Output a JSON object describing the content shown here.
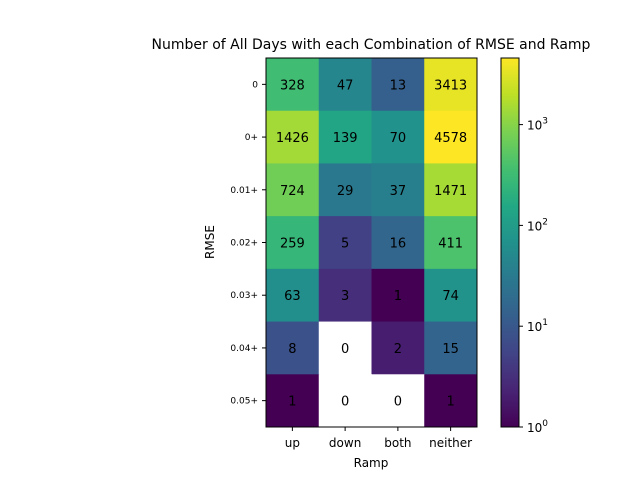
{
  "chart_data": {
    "type": "heatmap",
    "title": "Number of All Days with each Combination of RMSE and Ramp",
    "xlabel": "Ramp",
    "ylabel": "RMSE",
    "x_categories": [
      "up",
      "down",
      "both",
      "neither"
    ],
    "y_categories": [
      "0",
      "0+",
      "0.01+",
      "0.02+",
      "0.03+",
      "0.04+",
      "0.05+"
    ],
    "values": [
      [
        328,
        47,
        13,
        3413
      ],
      [
        1426,
        139,
        70,
        4578
      ],
      [
        724,
        29,
        37,
        1471
      ],
      [
        259,
        5,
        16,
        411
      ],
      [
        63,
        3,
        1,
        74
      ],
      [
        8,
        0,
        2,
        15
      ],
      [
        1,
        0,
        0,
        1
      ]
    ],
    "color_scale": "log",
    "colormap": "viridis",
    "zero_color": "#ffffff",
    "colorbar": {
      "range": [
        1,
        4578
      ],
      "ticks": [
        {
          "value": 1,
          "base": "10",
          "exp": "0"
        },
        {
          "value": 10,
          "base": "10",
          "exp": "1"
        },
        {
          "value": 100,
          "base": "10",
          "exp": "2"
        },
        {
          "value": 1000,
          "base": "10",
          "exp": "3"
        }
      ]
    }
  }
}
